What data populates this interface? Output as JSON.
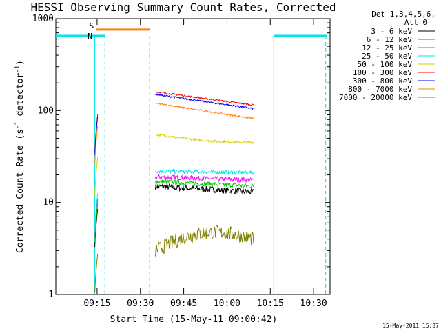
{
  "chart_data": {
    "type": "line",
    "title": "HESSI Observing Summary Count Rates, Corrected",
    "xlabel": "Start Time (15-May-11 09:00:42)",
    "ylabel": "Corrected Count Rate (s",
    "ylabel_sup1": "-1",
    "ylabel_mid": " detector",
    "ylabel_sup2": "-1",
    "ylabel_end": ")",
    "y_scale": "log",
    "ylim": [
      1,
      1000
    ],
    "xlim_minutes": [
      0,
      95
    ],
    "x_ticks": [
      {
        "label": "09:15",
        "minute": 14.3
      },
      {
        "label": "09:30",
        "minute": 29.3
      },
      {
        "label": "09:45",
        "minute": 44.3
      },
      {
        "label": "10:00",
        "minute": 59.3
      },
      {
        "label": "10:15",
        "minute": 74.3
      },
      {
        "label": "10:30",
        "minute": 89.3
      }
    ],
    "y_ticks": [
      {
        "label": "1",
        "value": 1
      },
      {
        "label": "10",
        "value": 10
      },
      {
        "label": "100",
        "value": 100
      },
      {
        "label": "1000",
        "value": 1000
      }
    ],
    "legend_header": [
      "Det 1,3,4,5,6,",
      "Att 0"
    ],
    "legend_position": "right",
    "series": [
      {
        "name": "3 - 6 keV",
        "color": "#000000",
        "base_start": 15,
        "base_end": 13,
        "bump": 0,
        "noise": 0.08
      },
      {
        "name": "6 - 12 keV",
        "color": "#ff00ff",
        "base_start": 19,
        "base_end": 17.5,
        "bump": 0,
        "noise": 0.06
      },
      {
        "name": "12 - 25 keV",
        "color": "#00cc00",
        "base_start": 17,
        "base_end": 15,
        "bump": 0,
        "noise": 0.06
      },
      {
        "name": "25 - 50 keV",
        "color": "#00e5e5",
        "base_start": 22,
        "base_end": 21,
        "bump": 0,
        "noise": 0.05
      },
      {
        "name": "50 - 100 keV",
        "color": "#d2d200",
        "base_start": 55,
        "base_end": 45,
        "bump": -0.05,
        "noise": 0.03
      },
      {
        "name": "100 - 300 keV",
        "color": "#ff0000",
        "base_start": 160,
        "base_end": 115,
        "bump": 0,
        "noise": 0.02
      },
      {
        "name": "300 - 800 keV",
        "color": "#0000ff",
        "base_start": 150,
        "base_end": 105,
        "bump": 0,
        "noise": 0.02
      },
      {
        "name": "800 - 7000 keV",
        "color": "#ff7f00",
        "base_start": 120,
        "base_end": 82,
        "bump": 0,
        "noise": 0.02
      },
      {
        "name": "7000 - 20000 keV",
        "color": "#7f7f00",
        "base_start": 3,
        "base_end": 4,
        "bump": 0.3,
        "noise": 0.18
      }
    ],
    "data_segment_minutes": [
      34.5,
      68.5
    ],
    "pre_spike_minutes": [
      13.5,
      14.5
    ],
    "pre_spike_values": [
      50,
      60,
      70,
      80,
      90,
      100,
      110,
      120,
      130
    ],
    "status_bars": [
      {
        "label": "N",
        "color": "#00e5e5",
        "level": 650,
        "segments": [
          [
            -5,
            17
          ],
          [
            75.5,
            94
          ]
        ]
      },
      {
        "label": "S",
        "color": "#ff7f00",
        "level": 760,
        "segments": [
          [
            14,
            32.5
          ]
        ]
      }
    ],
    "status_dashes": [
      {
        "color": "#00e5e5",
        "minute": 17
      },
      {
        "color": "#ff7f00",
        "minute": 32.5
      },
      {
        "color": "#00e5e5",
        "minute": 93.5
      }
    ],
    "status_solid": [
      {
        "color": "#00e5e5",
        "minute": 13.5
      },
      {
        "color": "#00e5e5",
        "minute": 75.5
      }
    ]
  },
  "footer": {
    "stamp": "15-May-2011 15:37"
  }
}
